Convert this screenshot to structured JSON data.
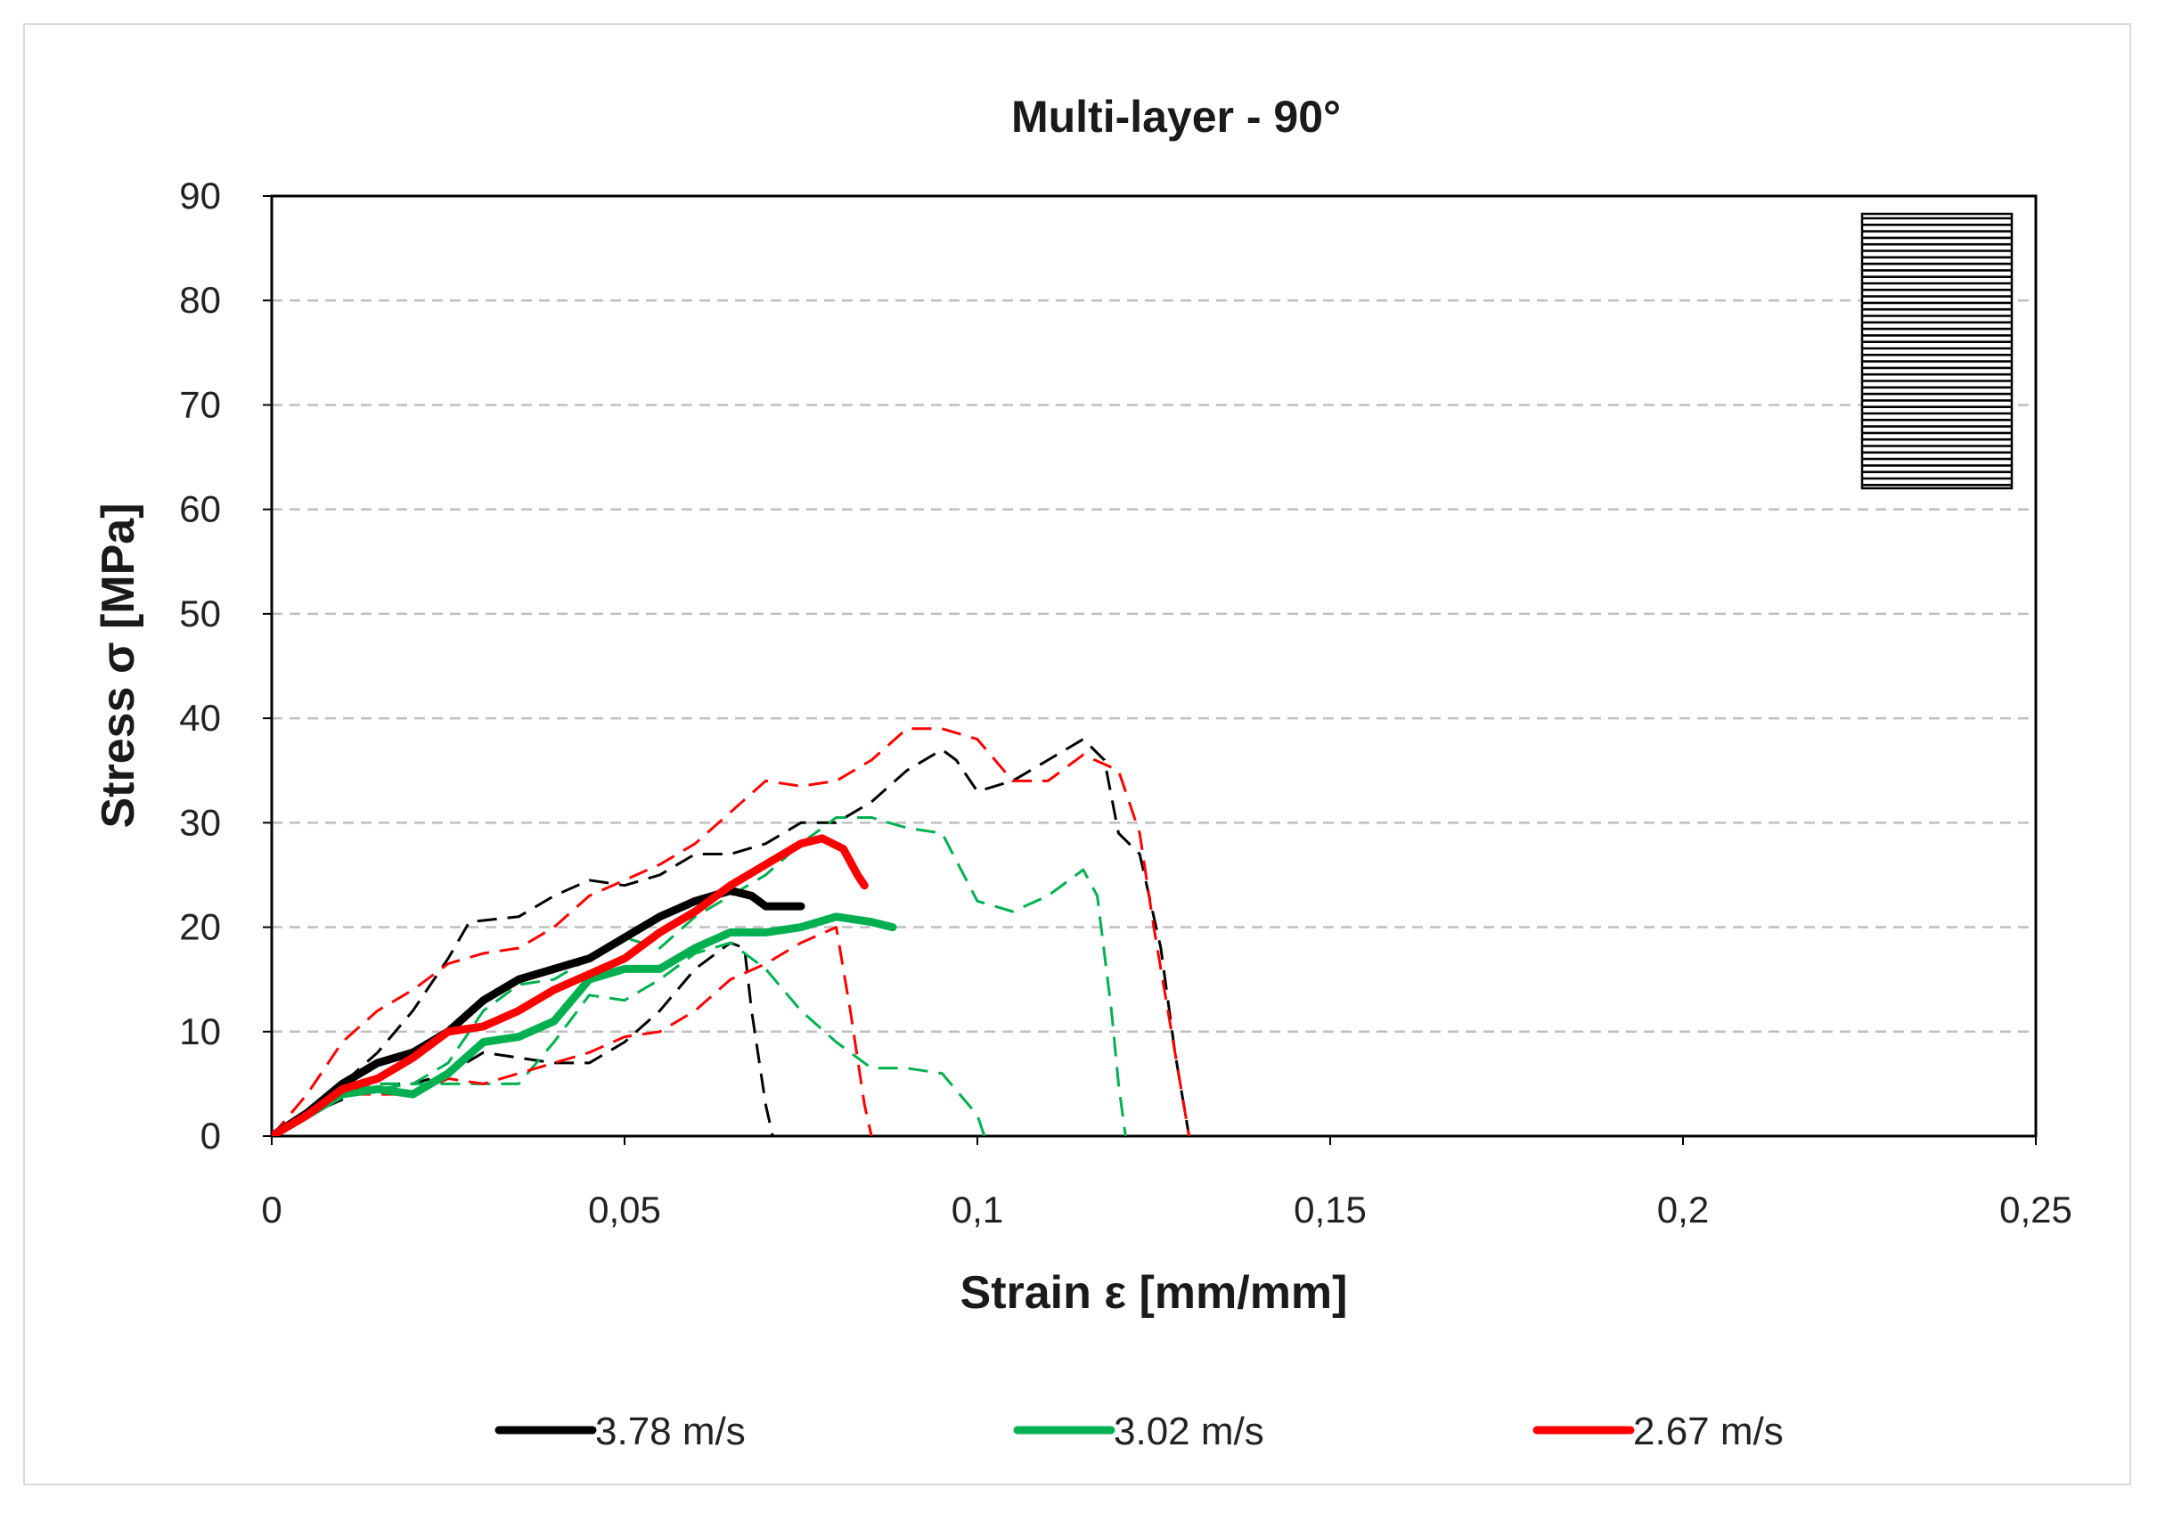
{
  "chart_data": {
    "type": "line",
    "title": "Multi-layer - 90°",
    "xlabel": "Strain ε [mm/mm]",
    "ylabel": "Stress σ [MPa]",
    "xlim": [
      0,
      0.25
    ],
    "ylim": [
      0,
      90
    ],
    "x_ticks": [
      0,
      0.05,
      0.1,
      0.15,
      0.2,
      0.25
    ],
    "x_tick_labels": [
      "0",
      "0,05",
      "0,1",
      "0,15",
      "0,2",
      "0,25"
    ],
    "y_ticks": [
      0,
      10,
      20,
      30,
      40,
      50,
      60,
      70,
      80,
      90
    ],
    "y_tick_labels": [
      "0",
      "10",
      "20",
      "30",
      "40",
      "50",
      "60",
      "70",
      "80",
      "90"
    ],
    "grid": "horizontal dashed",
    "legend_position": "bottom",
    "inset": "horizontal-stripe fiber orientation icon (90°)",
    "colors": {
      "black": "#000000",
      "green": "#00b050",
      "red": "#ff0000",
      "grid": "#bfbfbf"
    },
    "legend": [
      {
        "label": "3.78 m/s",
        "color": "#000000"
      },
      {
        "label": "3.02 m/s",
        "color": "#00b050"
      },
      {
        "label": "2.67 m/s",
        "color": "#ff0000"
      }
    ],
    "series": [
      {
        "name": "3.78 m/s",
        "group": "3.78 m/s",
        "style": "solid",
        "color": "#000000",
        "points": [
          [
            0,
            0
          ],
          [
            0.005,
            2.2
          ],
          [
            0.01,
            5
          ],
          [
            0.015,
            7
          ],
          [
            0.02,
            8
          ],
          [
            0.025,
            10
          ],
          [
            0.03,
            13
          ],
          [
            0.035,
            15
          ],
          [
            0.04,
            16
          ],
          [
            0.045,
            17
          ],
          [
            0.05,
            19
          ],
          [
            0.055,
            21
          ],
          [
            0.06,
            22.5
          ],
          [
            0.065,
            23.5
          ],
          [
            0.068,
            23
          ],
          [
            0.07,
            22
          ],
          [
            0.075,
            22
          ]
        ]
      },
      {
        "name": "3.78 m/s run A",
        "group": "3.78 m/s",
        "style": "dashed",
        "color": "#000000",
        "points": [
          [
            0,
            0
          ],
          [
            0.01,
            5
          ],
          [
            0.015,
            8
          ],
          [
            0.02,
            12
          ],
          [
            0.025,
            17
          ],
          [
            0.028,
            20.5
          ],
          [
            0.035,
            21
          ],
          [
            0.04,
            23
          ],
          [
            0.045,
            24.5
          ],
          [
            0.05,
            24
          ],
          [
            0.055,
            25
          ],
          [
            0.06,
            27
          ],
          [
            0.065,
            27
          ],
          [
            0.07,
            28
          ],
          [
            0.075,
            30
          ],
          [
            0.08,
            30
          ],
          [
            0.085,
            32
          ],
          [
            0.09,
            35
          ],
          [
            0.095,
            37
          ],
          [
            0.097,
            36
          ],
          [
            0.1,
            33
          ],
          [
            0.105,
            34
          ],
          [
            0.11,
            36
          ],
          [
            0.115,
            38
          ],
          [
            0.118,
            36
          ],
          [
            0.12,
            29
          ],
          [
            0.123,
            27
          ],
          [
            0.126,
            18
          ],
          [
            0.128,
            8
          ],
          [
            0.13,
            0
          ]
        ]
      },
      {
        "name": "3.78 m/s run B",
        "group": "3.78 m/s",
        "style": "dashed",
        "color": "#000000",
        "points": [
          [
            0,
            0
          ],
          [
            0.005,
            2
          ],
          [
            0.01,
            3.5
          ],
          [
            0.015,
            5
          ],
          [
            0.02,
            5
          ],
          [
            0.025,
            6
          ],
          [
            0.03,
            8
          ],
          [
            0.035,
            7.5
          ],
          [
            0.04,
            7
          ],
          [
            0.045,
            7
          ],
          [
            0.05,
            9
          ],
          [
            0.055,
            12
          ],
          [
            0.06,
            16
          ],
          [
            0.065,
            18.5
          ],
          [
            0.067,
            18
          ],
          [
            0.068,
            12
          ],
          [
            0.07,
            3
          ],
          [
            0.071,
            0
          ]
        ]
      },
      {
        "name": "3.02 m/s",
        "group": "3.02 m/s",
        "style": "solid",
        "color": "#00b050",
        "points": [
          [
            0,
            0
          ],
          [
            0.005,
            2
          ],
          [
            0.01,
            4
          ],
          [
            0.015,
            4.5
          ],
          [
            0.02,
            4
          ],
          [
            0.025,
            6
          ],
          [
            0.03,
            9
          ],
          [
            0.035,
            9.5
          ],
          [
            0.04,
            11
          ],
          [
            0.045,
            15
          ],
          [
            0.05,
            16
          ],
          [
            0.055,
            16
          ],
          [
            0.06,
            18
          ],
          [
            0.065,
            19.5
          ],
          [
            0.07,
            19.5
          ],
          [
            0.075,
            20
          ],
          [
            0.08,
            21
          ],
          [
            0.085,
            20.5
          ],
          [
            0.088,
            20
          ]
        ]
      },
      {
        "name": "3.02 m/s run A",
        "group": "3.02 m/s",
        "style": "dashed",
        "color": "#00b050",
        "points": [
          [
            0,
            0
          ],
          [
            0.005,
            2
          ],
          [
            0.01,
            4
          ],
          [
            0.015,
            4.5
          ],
          [
            0.02,
            5
          ],
          [
            0.025,
            7
          ],
          [
            0.03,
            12
          ],
          [
            0.035,
            14.5
          ],
          [
            0.04,
            15
          ],
          [
            0.045,
            17
          ],
          [
            0.05,
            19
          ],
          [
            0.055,
            18
          ],
          [
            0.06,
            21
          ],
          [
            0.065,
            23
          ],
          [
            0.07,
            25
          ],
          [
            0.075,
            28
          ],
          [
            0.08,
            30.5
          ],
          [
            0.085,
            30.5
          ],
          [
            0.09,
            29.5
          ],
          [
            0.095,
            29
          ],
          [
            0.1,
            22.5
          ],
          [
            0.105,
            21.5
          ],
          [
            0.11,
            23
          ],
          [
            0.115,
            25.5
          ],
          [
            0.117,
            23
          ],
          [
            0.119,
            12
          ],
          [
            0.12,
            5
          ],
          [
            0.121,
            0
          ]
        ]
      },
      {
        "name": "3.02 m/s run B",
        "group": "3.02 m/s",
        "style": "dashed",
        "color": "#00b050",
        "points": [
          [
            0,
            0
          ],
          [
            0.005,
            2
          ],
          [
            0.01,
            4
          ],
          [
            0.015,
            5
          ],
          [
            0.02,
            5
          ],
          [
            0.025,
            5
          ],
          [
            0.03,
            5
          ],
          [
            0.035,
            5
          ],
          [
            0.04,
            9
          ],
          [
            0.045,
            13.5
          ],
          [
            0.05,
            13
          ],
          [
            0.055,
            15
          ],
          [
            0.06,
            17.5
          ],
          [
            0.065,
            18.5
          ],
          [
            0.07,
            16
          ],
          [
            0.075,
            12
          ],
          [
            0.08,
            9
          ],
          [
            0.085,
            6.5
          ],
          [
            0.09,
            6.5
          ],
          [
            0.095,
            6
          ],
          [
            0.1,
            2
          ],
          [
            0.101,
            0
          ]
        ]
      },
      {
        "name": "2.67 m/s",
        "group": "2.67 m/s",
        "style": "solid",
        "color": "#ff0000",
        "points": [
          [
            0,
            0
          ],
          [
            0.005,
            2
          ],
          [
            0.01,
            4.5
          ],
          [
            0.015,
            5.5
          ],
          [
            0.02,
            7.5
          ],
          [
            0.025,
            10
          ],
          [
            0.03,
            10.5
          ],
          [
            0.035,
            12
          ],
          [
            0.04,
            14
          ],
          [
            0.045,
            15.5
          ],
          [
            0.05,
            17
          ],
          [
            0.055,
            19.5
          ],
          [
            0.06,
            21.5
          ],
          [
            0.065,
            24
          ],
          [
            0.07,
            26
          ],
          [
            0.075,
            28
          ],
          [
            0.078,
            28.5
          ],
          [
            0.081,
            27.5
          ],
          [
            0.083,
            25
          ],
          [
            0.084,
            24
          ]
        ]
      },
      {
        "name": "2.67 m/s run A",
        "group": "2.67 m/s",
        "style": "dashed",
        "color": "#ff0000",
        "points": [
          [
            0,
            0
          ],
          [
            0.005,
            4
          ],
          [
            0.01,
            9
          ],
          [
            0.015,
            12
          ],
          [
            0.02,
            14
          ],
          [
            0.025,
            16.5
          ],
          [
            0.03,
            17.5
          ],
          [
            0.035,
            18
          ],
          [
            0.04,
            20
          ],
          [
            0.045,
            23
          ],
          [
            0.05,
            24.5
          ],
          [
            0.055,
            26
          ],
          [
            0.06,
            28
          ],
          [
            0.065,
            31
          ],
          [
            0.07,
            34
          ],
          [
            0.075,
            33.5
          ],
          [
            0.08,
            34
          ],
          [
            0.085,
            36
          ],
          [
            0.09,
            39
          ],
          [
            0.095,
            39
          ],
          [
            0.1,
            38
          ],
          [
            0.105,
            34
          ],
          [
            0.11,
            34
          ],
          [
            0.115,
            36.5
          ],
          [
            0.12,
            35
          ],
          [
            0.123,
            29
          ],
          [
            0.125,
            20
          ],
          [
            0.128,
            8
          ],
          [
            0.13,
            0
          ]
        ]
      },
      {
        "name": "2.67 m/s run B",
        "group": "2.67 m/s",
        "style": "dashed",
        "color": "#ff0000",
        "points": [
          [
            0,
            0
          ],
          [
            0.005,
            2
          ],
          [
            0.01,
            4
          ],
          [
            0.015,
            4
          ],
          [
            0.02,
            4
          ],
          [
            0.025,
            5.5
          ],
          [
            0.03,
            5
          ],
          [
            0.035,
            6
          ],
          [
            0.04,
            7
          ],
          [
            0.045,
            8
          ],
          [
            0.05,
            9.5
          ],
          [
            0.055,
            10
          ],
          [
            0.06,
            12
          ],
          [
            0.065,
            15
          ],
          [
            0.07,
            16.5
          ],
          [
            0.075,
            18.5
          ],
          [
            0.08,
            20
          ],
          [
            0.082,
            12
          ],
          [
            0.084,
            3
          ],
          [
            0.085,
            0
          ]
        ]
      }
    ]
  }
}
